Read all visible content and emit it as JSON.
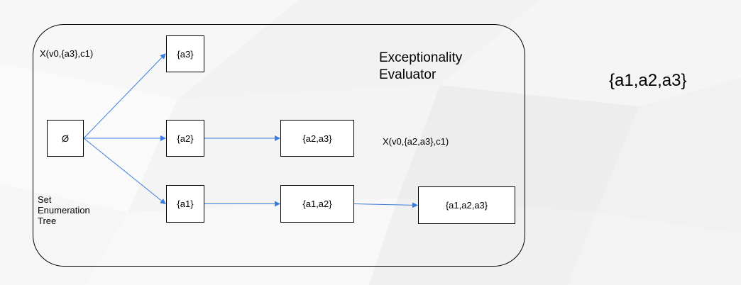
{
  "diagram": {
    "title_line1": "Exceptionality",
    "title_line2": "Evaluator",
    "tree_label": [
      "Set",
      "Enumeration",
      "Tree"
    ],
    "annotation_top": "X(v0,{a3},c1)",
    "annotation_mid": "X(v0,{a2,a3},c1)",
    "result": "{a1,a2,a3}",
    "nodes": {
      "empty": "Ø",
      "a3": "{a3}",
      "a2": "{a2}",
      "a1": "{a1}",
      "a2a3": "{a2,a3}",
      "a1a2": "{a1,a2}",
      "a1a2a3": "{a1,a2,a3}"
    },
    "edges": [
      {
        "from": "empty",
        "to": "a3"
      },
      {
        "from": "empty",
        "to": "a2"
      },
      {
        "from": "empty",
        "to": "a1"
      },
      {
        "from": "a2",
        "to": "a2a3"
      },
      {
        "from": "a1",
        "to": "a1a2"
      },
      {
        "from": "a1a2",
        "to": "a1a2a3"
      }
    ],
    "edge_color": "#3b7ddd"
  }
}
